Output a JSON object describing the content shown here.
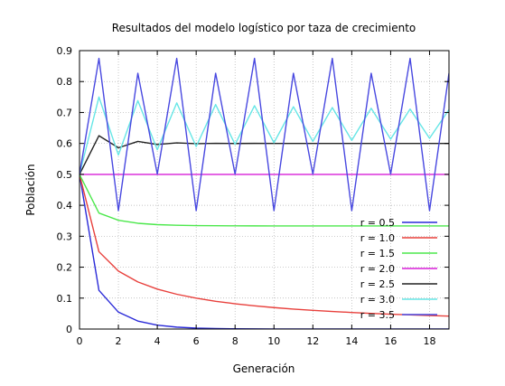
{
  "chart_data": {
    "type": "line",
    "title": "Resultados del modelo logístico por taza de crecimiento",
    "xlabel": "Generación",
    "ylabel": "Población",
    "xlim": [
      0,
      19
    ],
    "ylim": [
      0,
      0.9
    ],
    "xticks": [
      0,
      2,
      4,
      6,
      8,
      10,
      12,
      14,
      16,
      18
    ],
    "yticks": [
      0,
      0.1,
      0.2,
      0.3,
      0.4,
      0.5,
      0.6,
      0.7,
      0.8,
      0.9
    ],
    "grid": true,
    "legend_position": "bottom-right",
    "x": [
      0,
      1,
      2,
      3,
      4,
      5,
      6,
      7,
      8,
      9,
      10,
      11,
      12,
      13,
      14,
      15,
      16,
      17,
      18,
      19
    ],
    "series": [
      {
        "name": "r = 0.5",
        "color": "#2a2ad8",
        "values": [
          0.5,
          0.125,
          0.0547,
          0.0258,
          0.0126,
          0.0062,
          0.0031,
          0.0015,
          0.0008,
          0.0004,
          0.0002,
          0.0001,
          0.0,
          0.0,
          0.0,
          0.0,
          0.0,
          0.0,
          0.0,
          0.0
        ]
      },
      {
        "name": "r = 1.0",
        "color": "#e8403c",
        "values": [
          0.5,
          0.25,
          0.1875,
          0.1523,
          0.1291,
          0.1125,
          0.0998,
          0.0898,
          0.0818,
          0.0751,
          0.0694,
          0.0646,
          0.0604,
          0.0568,
          0.0536,
          0.0507,
          0.0481,
          0.0458,
          0.0437,
          0.0418
        ]
      },
      {
        "name": "r = 1.5",
        "color": "#4ce84c",
        "values": [
          0.5,
          0.375,
          0.3516,
          0.3419,
          0.3375,
          0.3354,
          0.3344,
          0.3339,
          0.3336,
          0.3335,
          0.3334,
          0.3334,
          0.3333,
          0.3333,
          0.3333,
          0.3333,
          0.3333,
          0.3333,
          0.3333,
          0.3333
        ]
      },
      {
        "name": "r = 2.0",
        "color": "#d81ed8",
        "values": [
          0.5,
          0.5,
          0.5,
          0.5,
          0.5,
          0.5,
          0.5,
          0.5,
          0.5,
          0.5,
          0.5,
          0.5,
          0.5,
          0.5,
          0.5,
          0.5,
          0.5,
          0.5,
          0.5,
          0.5
        ]
      },
      {
        "name": "r = 2.5",
        "color": "#222222",
        "values": [
          0.5,
          0.625,
          0.5859,
          0.6065,
          0.5966,
          0.6017,
          0.5992,
          0.6004,
          0.5998,
          0.6001,
          0.6,
          0.6,
          0.6,
          0.6,
          0.6,
          0.6,
          0.6,
          0.6,
          0.6,
          0.6
        ]
      },
      {
        "name": "r = 3.0",
        "color": "#66e6e6",
        "values": [
          0.5,
          0.75,
          0.5625,
          0.7383,
          0.5796,
          0.731,
          0.5899,
          0.7257,
          0.597,
          0.7218,
          0.6023,
          0.7186,
          0.6066,
          0.7159,
          0.6101,
          0.7136,
          0.614,
          0.711,
          0.6165,
          0.7093
        ]
      },
      {
        "name": "r = 3.5",
        "color": "#4848e0",
        "values": [
          0.5,
          0.875,
          0.3828,
          0.8269,
          0.5009,
          0.875,
          0.3828,
          0.8269,
          0.5009,
          0.875,
          0.3828,
          0.8269,
          0.5009,
          0.875,
          0.3828,
          0.8269,
          0.5009,
          0.875,
          0.3828,
          0.8269
        ]
      }
    ]
  }
}
